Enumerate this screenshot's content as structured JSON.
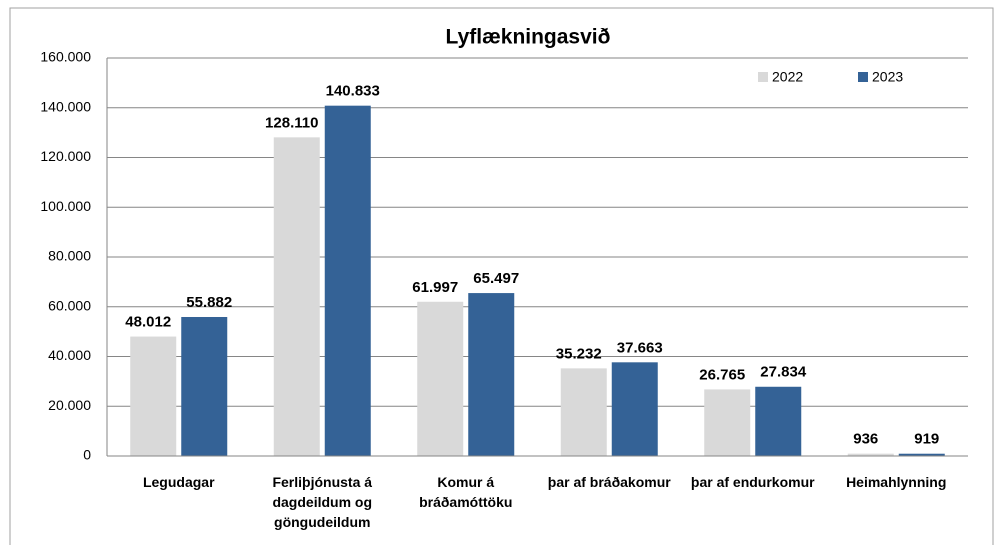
{
  "chart_data": {
    "type": "bar",
    "title": "Lyflækningasvið",
    "categories": [
      "Legudagar",
      "Ferliþjónusta á dagdeildum og göngudeildum",
      "Komur á bráðamóttöku",
      "þar af bráðakomur",
      "þar af endurkomur",
      "Heimahlynning"
    ],
    "series": [
      {
        "name": "2022",
        "color": "#d9d9d9",
        "values": [
          48012,
          128110,
          61997,
          35232,
          26765,
          936
        ],
        "value_labels": [
          "48.012",
          "128.110",
          "61.997",
          "35.232",
          "26.765",
          "936"
        ]
      },
      {
        "name": "2023",
        "color": "#346296",
        "values": [
          55882,
          140833,
          65497,
          37663,
          27834,
          919
        ],
        "value_labels": [
          "55.882",
          "140.833",
          "65.497",
          "37.663",
          "27.834",
          "919"
        ]
      }
    ],
    "ylim": [
      0,
      160000
    ],
    "yticks": [
      0,
      {
        "value": 20000,
        "label": "20.000"
      },
      {
        "value": 40000,
        "label": "40.000"
      },
      {
        "value": 60000,
        "label": "60.000"
      },
      {
        "value": 80000,
        "label": "80.000"
      },
      {
        "value": 100000,
        "label": "100.000"
      },
      {
        "value": 120000,
        "label": "120.000"
      },
      {
        "value": 140000,
        "label": "140.000"
      },
      {
        "value": 160000,
        "label": "160.000"
      }
    ],
    "grid": true,
    "legend": "top-right"
  }
}
